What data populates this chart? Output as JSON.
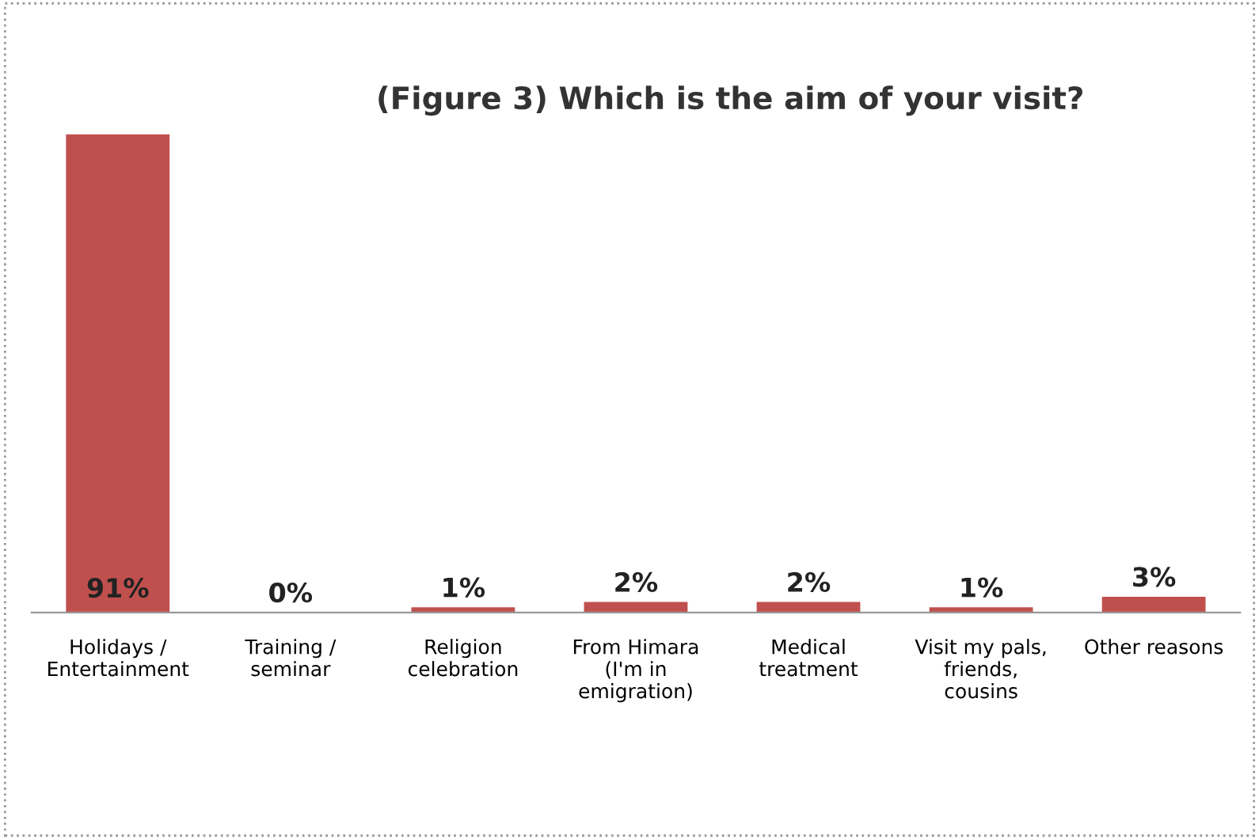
{
  "chart_data": {
    "type": "bar",
    "title": "(Figure 3) Which is the aim of your visit?",
    "categories": [
      "Holidays /\nEntertainment",
      "Training /\nseminar",
      "Religion\ncelebration",
      "From Himara\n(I'm in\nemigration)",
      "Medical\ntreatment",
      "Visit my pals,\nfriends,\ncousins",
      "Other reasons"
    ],
    "values": [
      91,
      0,
      1,
      2,
      2,
      1,
      3
    ],
    "value_labels": [
      "91%",
      "0%",
      "1%",
      "2%",
      "2%",
      "1%",
      "3%"
    ],
    "color": "#c0504d",
    "grid": false
  }
}
